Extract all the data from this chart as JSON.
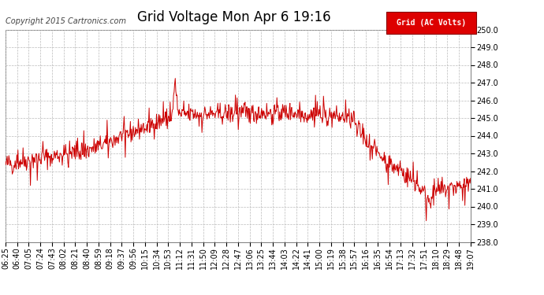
{
  "title": "Grid Voltage Mon Apr 6 19:16",
  "copyright": "Copyright 2015 Cartronics.com",
  "legend_label": "Grid (AC Volts)",
  "legend_bg": "#dd0000",
  "legend_fg": "#ffffff",
  "line_color": "#cc0000",
  "background_color": "#ffffff",
  "grid_color": "#bbbbbb",
  "ylim": [
    238.0,
    250.0
  ],
  "yticks": [
    238.0,
    239.0,
    240.0,
    241.0,
    242.0,
    243.0,
    244.0,
    245.0,
    246.0,
    247.0,
    248.0,
    249.0,
    250.0
  ],
  "xtick_labels": [
    "06:25",
    "06:40",
    "07:05",
    "07:24",
    "07:43",
    "08:02",
    "08:21",
    "08:40",
    "08:59",
    "09:18",
    "09:37",
    "09:56",
    "10:15",
    "10:34",
    "10:53",
    "11:12",
    "11:31",
    "11:50",
    "12:09",
    "12:28",
    "12:47",
    "13:06",
    "13:25",
    "13:44",
    "14:03",
    "14:22",
    "14:41",
    "15:00",
    "15:19",
    "15:38",
    "15:57",
    "16:16",
    "16:35",
    "16:54",
    "17:13",
    "17:32",
    "17:51",
    "18:10",
    "18:29",
    "18:48",
    "19:07"
  ],
  "title_fontsize": 12,
  "tick_fontsize": 7,
  "copyright_fontsize": 7
}
